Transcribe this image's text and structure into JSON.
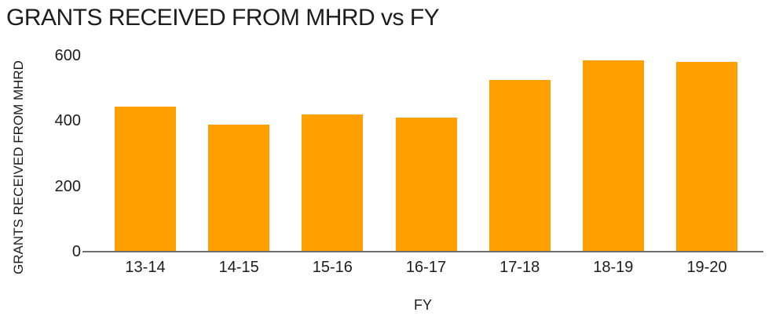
{
  "chart_data": {
    "type": "bar",
    "title": "GRANTS RECEIVED FROM MHRD vs FY",
    "xlabel": "FY",
    "ylabel": "GRANTS RECEIVED FROM MHRD",
    "categories": [
      "13-14",
      "14-15",
      "15-16",
      "16-17",
      "17-18",
      "18-19",
      "19-20"
    ],
    "values": [
      445,
      390,
      420,
      410,
      525,
      585,
      580
    ],
    "ylim": [
      0,
      600
    ],
    "yticks": [
      0,
      200,
      400,
      600
    ],
    "grid": "off",
    "legend": "none",
    "bar_color": "#FFA000",
    "axis_line_color": "#6D6E71",
    "text_color": "#1D1D1F",
    "background_color": "#FFFFFF"
  }
}
